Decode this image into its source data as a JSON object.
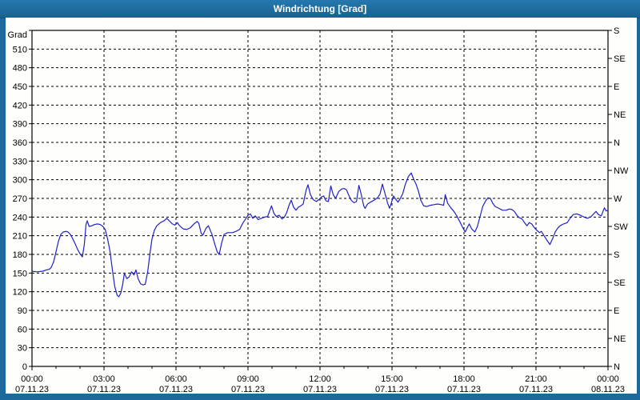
{
  "window": {
    "title": "Windrichtung [Grad]"
  },
  "colors": {
    "titlebar": "#1C699C",
    "panel": "#FEFEFC",
    "frame": "#000000",
    "grid": "#000000",
    "line": "#2020C8"
  },
  "chart_data": {
    "type": "line",
    "title": "Windrichtung [Grad]",
    "grid": "dashed",
    "x_axis": {
      "range_hours": [
        0,
        24
      ],
      "major_step_hours": 3,
      "minor_step_hours": 1,
      "tick_times": [
        "00:00",
        "03:00",
        "06:00",
        "09:00",
        "12:00",
        "15:00",
        "18:00",
        "21:00",
        "00:00"
      ],
      "tick_dates": [
        "07.11.23",
        "07.11.23",
        "07.11.23",
        "07.11.23",
        "07.11.23",
        "07.11.23",
        "07.11.23",
        "07.11.23",
        "08.11.23"
      ]
    },
    "y_axis_left": {
      "label": "Grad",
      "min": 0,
      "max": 540,
      "tick_step": 30,
      "labeled_ticks": [
        0,
        30,
        60,
        90,
        120,
        150,
        180,
        210,
        240,
        270,
        300,
        330,
        360,
        390,
        420,
        450,
        480,
        510
      ]
    },
    "y_axis_right": {
      "tick_step": 45,
      "labels_bottom_to_top": [
        "N",
        "NE",
        "E",
        "SE",
        "S",
        "SW",
        "W",
        "NW",
        "N",
        "NE",
        "E",
        "SE",
        "S"
      ]
    },
    "series": [
      {
        "name": "Windrichtung",
        "color": "#2020C8",
        "points": [
          [
            0,
            153
          ],
          [
            0.2,
            152
          ],
          [
            0.45,
            153
          ],
          [
            0.6,
            155
          ],
          [
            0.72,
            156
          ],
          [
            0.8,
            159
          ],
          [
            0.9,
            168
          ],
          [
            1.0,
            184
          ],
          [
            1.1,
            201
          ],
          [
            1.2,
            212
          ],
          [
            1.3,
            216
          ],
          [
            1.42,
            217
          ],
          [
            1.5,
            216
          ],
          [
            1.6,
            212
          ],
          [
            1.7,
            205
          ],
          [
            1.8,
            197
          ],
          [
            1.9,
            188
          ],
          [
            2.0,
            181
          ],
          [
            2.1,
            176
          ],
          [
            2.18,
            196
          ],
          [
            2.25,
            228
          ],
          [
            2.3,
            234
          ],
          [
            2.38,
            225
          ],
          [
            2.5,
            226
          ],
          [
            2.6,
            228
          ],
          [
            2.72,
            229
          ],
          [
            2.85,
            228
          ],
          [
            2.95,
            225
          ],
          [
            3.05,
            220
          ],
          [
            3.15,
            205
          ],
          [
            3.25,
            185
          ],
          [
            3.35,
            155
          ],
          [
            3.45,
            128
          ],
          [
            3.55,
            114
          ],
          [
            3.62,
            112
          ],
          [
            3.7,
            118
          ],
          [
            3.78,
            132
          ],
          [
            3.85,
            150
          ],
          [
            3.95,
            141
          ],
          [
            4.05,
            144
          ],
          [
            4.15,
            152
          ],
          [
            4.25,
            147
          ],
          [
            4.33,
            155
          ],
          [
            4.42,
            141
          ],
          [
            4.52,
            133
          ],
          [
            4.62,
            131
          ],
          [
            4.72,
            132
          ],
          [
            4.82,
            152
          ],
          [
            4.92,
            183
          ],
          [
            5.0,
            205
          ],
          [
            5.1,
            219
          ],
          [
            5.2,
            226
          ],
          [
            5.35,
            231
          ],
          [
            5.5,
            234
          ],
          [
            5.62,
            238
          ],
          [
            5.72,
            234
          ],
          [
            5.85,
            229
          ],
          [
            5.95,
            227
          ],
          [
            6.05,
            231
          ],
          [
            6.15,
            226
          ],
          [
            6.3,
            221
          ],
          [
            6.45,
            220
          ],
          [
            6.6,
            223
          ],
          [
            6.75,
            229
          ],
          [
            6.88,
            233
          ],
          [
            6.95,
            230
          ],
          [
            7.05,
            214
          ],
          [
            7.12,
            211
          ],
          [
            7.25,
            222
          ],
          [
            7.35,
            226
          ],
          [
            7.5,
            212
          ],
          [
            7.62,
            196
          ],
          [
            7.72,
            184
          ],
          [
            7.8,
            180
          ],
          [
            7.9,
            198
          ],
          [
            8.0,
            212
          ],
          [
            8.15,
            215
          ],
          [
            8.35,
            215
          ],
          [
            8.5,
            217
          ],
          [
            8.65,
            220
          ],
          [
            8.78,
            230
          ],
          [
            8.9,
            237
          ],
          [
            9.0,
            243
          ],
          [
            9.1,
            245
          ],
          [
            9.2,
            238
          ],
          [
            9.3,
            242
          ],
          [
            9.42,
            236
          ],
          [
            9.55,
            238
          ],
          [
            9.7,
            240
          ],
          [
            9.82,
            241
          ],
          [
            9.92,
            252
          ],
          [
            9.98,
            258
          ],
          [
            10.08,
            246
          ],
          [
            10.18,
            241
          ],
          [
            10.3,
            243
          ],
          [
            10.42,
            237
          ],
          [
            10.52,
            240
          ],
          [
            10.62,
            248
          ],
          [
            10.72,
            260
          ],
          [
            10.8,
            267
          ],
          [
            10.9,
            256
          ],
          [
            11.0,
            251
          ],
          [
            11.1,
            256
          ],
          [
            11.2,
            258
          ],
          [
            11.3,
            261
          ],
          [
            11.42,
            283
          ],
          [
            11.5,
            292
          ],
          [
            11.6,
            276
          ],
          [
            11.72,
            268
          ],
          [
            11.85,
            265
          ],
          [
            11.95,
            268
          ],
          [
            12.05,
            272
          ],
          [
            12.15,
            274
          ],
          [
            12.25,
            266
          ],
          [
            12.35,
            265
          ],
          [
            12.45,
            290
          ],
          [
            12.55,
            276
          ],
          [
            12.65,
            270
          ],
          [
            12.78,
            281
          ],
          [
            12.9,
            285
          ],
          [
            13.0,
            286
          ],
          [
            13.1,
            284
          ],
          [
            13.2,
            275
          ],
          [
            13.3,
            267
          ],
          [
            13.42,
            263
          ],
          [
            13.52,
            265
          ],
          [
            13.62,
            291
          ],
          [
            13.72,
            276
          ],
          [
            13.82,
            258
          ],
          [
            13.88,
            254
          ],
          [
            13.98,
            261
          ],
          [
            14.1,
            264
          ],
          [
            14.25,
            267
          ],
          [
            14.4,
            271
          ],
          [
            14.5,
            277
          ],
          [
            14.6,
            293
          ],
          [
            14.7,
            279
          ],
          [
            14.82,
            262
          ],
          [
            14.9,
            254
          ],
          [
            15.0,
            266
          ],
          [
            15.06,
            274
          ],
          [
            15.15,
            269
          ],
          [
            15.25,
            264
          ],
          [
            15.35,
            270
          ],
          [
            15.45,
            278
          ],
          [
            15.55,
            292
          ],
          [
            15.68,
            305
          ],
          [
            15.8,
            311
          ],
          [
            15.9,
            301
          ],
          [
            16.0,
            293
          ],
          [
            16.1,
            282
          ],
          [
            16.2,
            267
          ],
          [
            16.32,
            258
          ],
          [
            16.45,
            257
          ],
          [
            16.6,
            259
          ],
          [
            16.75,
            260
          ],
          [
            16.9,
            261
          ],
          [
            17.05,
            260
          ],
          [
            17.15,
            259
          ],
          [
            17.22,
            276
          ],
          [
            17.32,
            262
          ],
          [
            17.45,
            255
          ],
          [
            17.58,
            249
          ],
          [
            17.7,
            242
          ],
          [
            17.82,
            233
          ],
          [
            17.95,
            223
          ],
          [
            18.05,
            216
          ],
          [
            18.15,
            224
          ],
          [
            18.22,
            229
          ],
          [
            18.32,
            221
          ],
          [
            18.45,
            216
          ],
          [
            18.55,
            224
          ],
          [
            18.65,
            238
          ],
          [
            18.78,
            257
          ],
          [
            18.9,
            266
          ],
          [
            19.0,
            271
          ],
          [
            19.1,
            270
          ],
          [
            19.2,
            262
          ],
          [
            19.3,
            257
          ],
          [
            19.45,
            254
          ],
          [
            19.6,
            251
          ],
          [
            19.75,
            251
          ],
          [
            19.9,
            253
          ],
          [
            20.0,
            252
          ],
          [
            20.1,
            249
          ],
          [
            20.2,
            243
          ],
          [
            20.3,
            239
          ],
          [
            20.42,
            237
          ],
          [
            20.52,
            231
          ],
          [
            20.62,
            226
          ],
          [
            20.72,
            231
          ],
          [
            20.82,
            229
          ],
          [
            20.95,
            222
          ],
          [
            21.05,
            218
          ],
          [
            21.15,
            215
          ],
          [
            21.22,
            217
          ],
          [
            21.32,
            211
          ],
          [
            21.45,
            203
          ],
          [
            21.58,
            196
          ],
          [
            21.7,
            206
          ],
          [
            21.8,
            216
          ],
          [
            21.9,
            222
          ],
          [
            22.0,
            226
          ],
          [
            22.15,
            229
          ],
          [
            22.3,
            231
          ],
          [
            22.42,
            238
          ],
          [
            22.55,
            244
          ],
          [
            22.7,
            245
          ],
          [
            22.85,
            243
          ],
          [
            23.0,
            240
          ],
          [
            23.15,
            238
          ],
          [
            23.3,
            241
          ],
          [
            23.42,
            246
          ],
          [
            23.5,
            249
          ],
          [
            23.6,
            244
          ],
          [
            23.72,
            242
          ],
          [
            23.85,
            255
          ],
          [
            23.92,
            250
          ],
          [
            24.0,
            251
          ]
        ]
      }
    ]
  }
}
